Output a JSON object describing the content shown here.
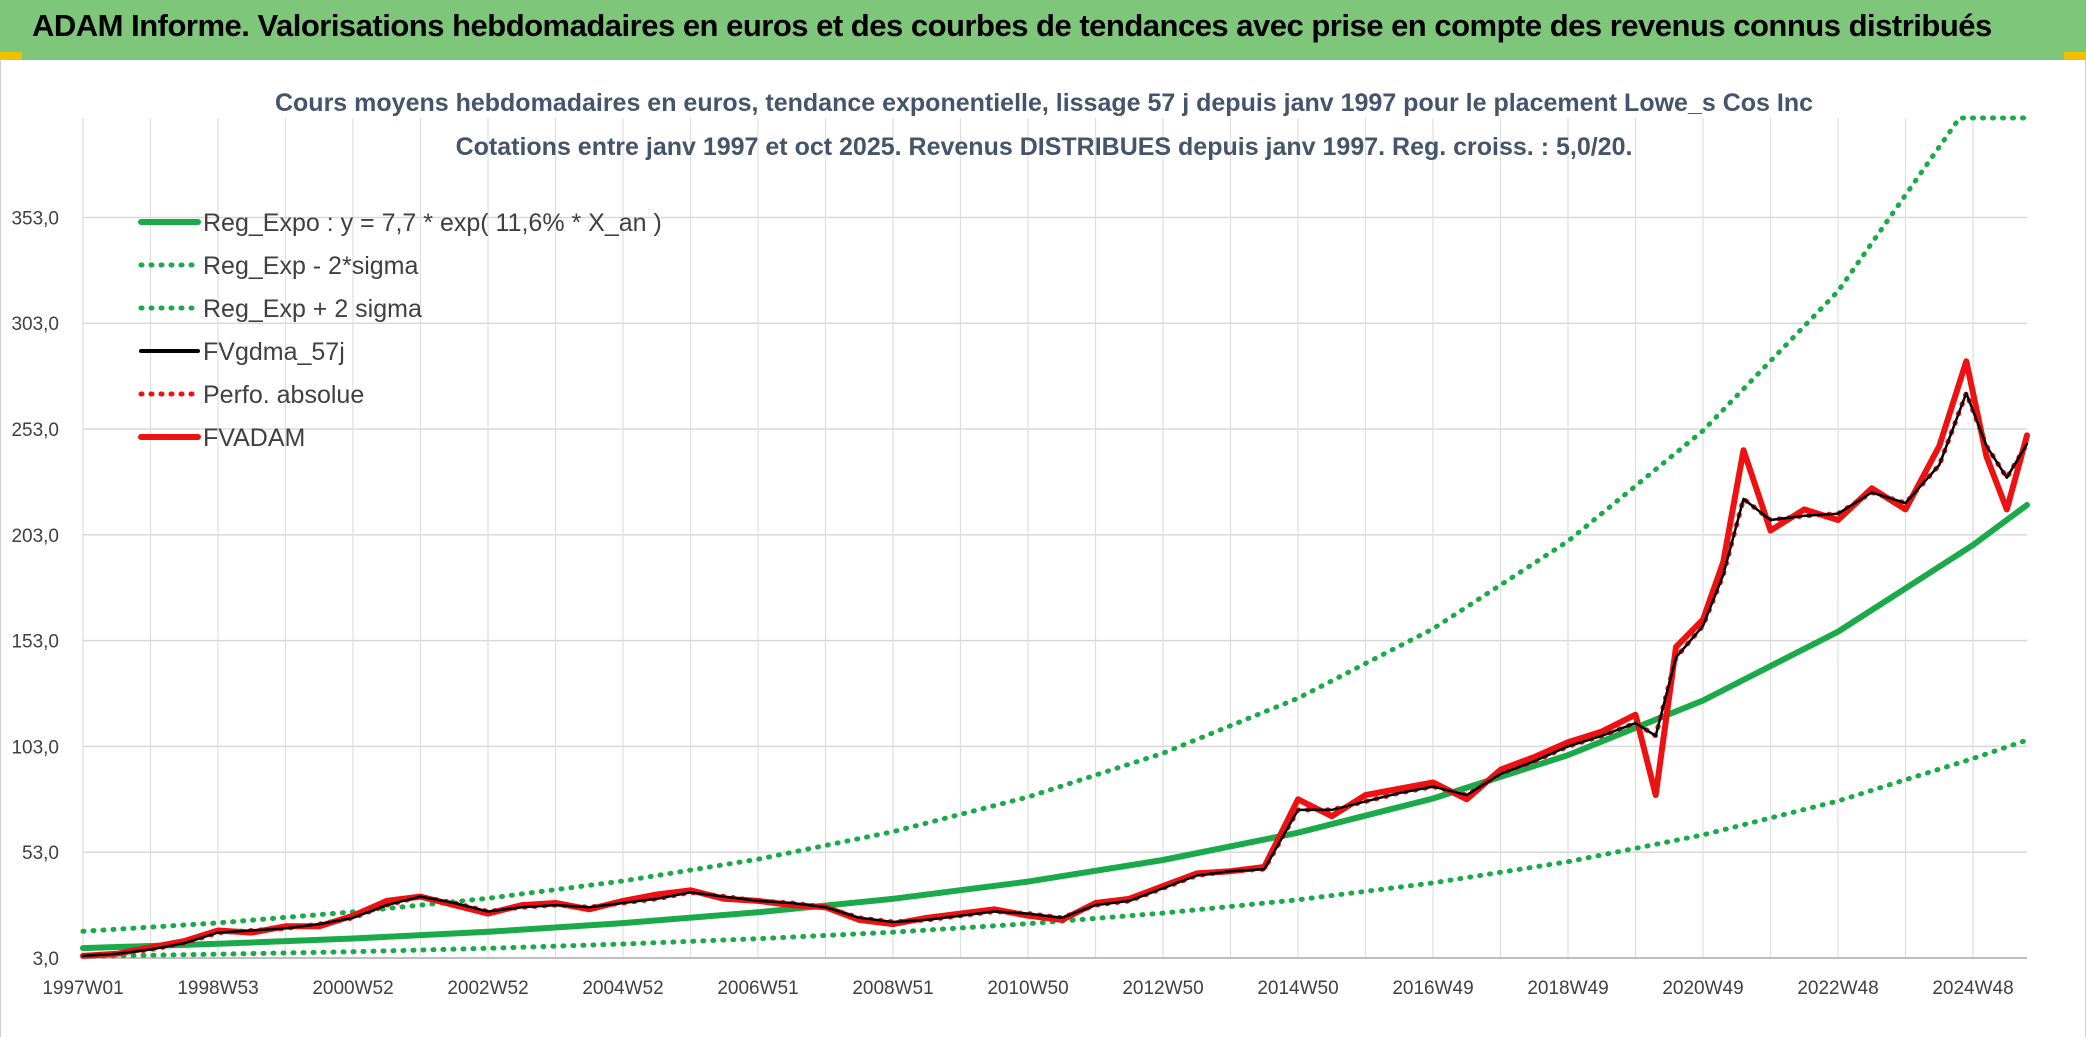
{
  "header": {
    "title": "ADAM Informe. Valorisations hebdomadaires en euros et des courbes de tendances avec prise en compte des revenus connus distribués"
  },
  "chart_data": {
    "type": "line",
    "title_lines": [
      "Cours moyens hebdomadaires en euros, tendance exponentielle, lissage 57 j depuis janv 1997 pour le placement Lowe_s Cos Inc",
      "Cotations entre janv 1997 et oct 2025. Revenus DISTRIBUES depuis janv 1997. Reg. croiss. : 5,0/20."
    ],
    "xlabel": "",
    "ylabel": "",
    "ylim": [
      3,
      400
    ],
    "xlim": [
      1997.0,
      2025.8
    ],
    "y_ticks": [
      "3,0",
      "53,0",
      "103,0",
      "153,0",
      "203,0",
      "253,0",
      "303,0",
      "353,0"
    ],
    "y_tick_values": [
      3,
      53,
      103,
      153,
      203,
      253,
      303,
      353
    ],
    "x_ticks": [
      "1997W01",
      "1998W53",
      "2000W52",
      "2002W52",
      "2004W52",
      "2006W51",
      "2008W51",
      "2010W50",
      "2012W50",
      "2014W50",
      "2016W49",
      "2018W49",
      "2020W49",
      "2022W48",
      "2024W48"
    ],
    "x_tick_years": [
      1997.0,
      1999.0,
      2001.0,
      2003.0,
      2005.0,
      2007.0,
      2009.0,
      2011.0,
      2013.0,
      2015.0,
      2017.0,
      2019.0,
      2021.0,
      2023.0,
      2025.0
    ],
    "grid": true,
    "legend_position": "top-left",
    "colors": {
      "green": "#1aaa4a",
      "black": "#000000",
      "red": "#ee1111"
    },
    "series": [
      {
        "name": "Reg_Expo : y = 7,7 * exp( 11,6% *  X_an )",
        "style": "solid-thick",
        "color": "#1aaa4a",
        "x": [
          1997.0,
          1999.0,
          2001.0,
          2003.0,
          2005.0,
          2007.0,
          2009.0,
          2011.0,
          2013.0,
          2015.0,
          2017.0,
          2019.0,
          2021.0,
          2023.0,
          2025.0,
          2025.8
        ],
        "y": [
          7.7,
          9.7,
          12.2,
          15.4,
          19.5,
          24.6,
          31.0,
          39.1,
          49.3,
          62.2,
          78.4,
          98.9,
          124.7,
          157.2,
          198.2,
          217.1
        ]
      },
      {
        "name": "Reg_Exp - 2*sigma",
        "style": "dotted",
        "color": "#1aaa4a",
        "x": [
          1997.0,
          1999.0,
          2001.0,
          2003.0,
          2005.0,
          2007.0,
          2009.0,
          2011.0,
          2013.0,
          2015.0,
          2017.0,
          2019.0,
          2021.0,
          2023.0,
          2025.0,
          2025.8
        ],
        "y": [
          3.8,
          4.8,
          6.0,
          7.6,
          9.6,
          12.1,
          15.2,
          19.2,
          24.2,
          30.5,
          38.5,
          48.5,
          61.2,
          77.2,
          97.3,
          106.0
        ]
      },
      {
        "name": "Reg_Exp + 2 sigma",
        "style": "dotted",
        "color": "#1aaa4a",
        "x": [
          1997.0,
          1999.0,
          2001.0,
          2003.0,
          2005.0,
          2007.0,
          2009.0,
          2011.0,
          2013.0,
          2015.0,
          2017.0,
          2019.0,
          2021.0,
          2023.0,
          2024.8,
          2025.8
        ],
        "y": [
          15.6,
          19.6,
          24.8,
          31.2,
          39.4,
          49.7,
          62.7,
          79.1,
          99.8,
          125.8,
          158.6,
          200.0,
          252.2,
          318.1,
          400.0,
          400.0
        ]
      },
      {
        "name": "FVgdma_57j",
        "style": "solid",
        "color": "#000000",
        "x": [
          1997.0,
          1997.5,
          1998.0,
          1998.5,
          1999.0,
          1999.5,
          2000.0,
          2000.5,
          2001.0,
          2001.5,
          2002.0,
          2002.5,
          2003.0,
          2003.5,
          2004.0,
          2004.5,
          2005.0,
          2005.5,
          2006.0,
          2006.5,
          2007.0,
          2007.5,
          2008.0,
          2008.5,
          2009.0,
          2009.5,
          2010.0,
          2010.5,
          2011.0,
          2011.5,
          2012.0,
          2012.5,
          2013.0,
          2013.5,
          2014.0,
          2014.5,
          2015.0,
          2015.5,
          2016.0,
          2016.5,
          2017.0,
          2017.5,
          2018.0,
          2018.5,
          2019.0,
          2019.5,
          2020.0,
          2020.3,
          2020.6,
          2021.0,
          2021.3,
          2021.6,
          2022.0,
          2022.5,
          2023.0,
          2023.5,
          2024.0,
          2024.5,
          2024.9,
          2025.2,
          2025.5,
          2025.8
        ],
        "y": [
          4,
          5,
          7,
          10,
          15,
          16,
          17,
          19,
          22,
          28,
          32,
          29,
          25,
          27,
          28,
          27,
          29,
          31,
          34,
          32,
          30,
          29,
          27,
          22,
          20,
          21,
          23,
          25,
          24,
          22,
          28,
          30,
          36,
          42,
          44,
          45,
          73,
          73,
          77,
          81,
          84,
          80,
          90,
          96,
          103,
          108,
          114,
          108,
          145,
          160,
          184,
          220,
          210,
          212,
          213,
          223,
          218,
          236,
          270,
          245,
          230,
          246
        ]
      },
      {
        "name": "Perfo. absolue",
        "style": "dotted",
        "color": "#ee1111",
        "x": [
          1997.0,
          1997.5,
          1998.0,
          1998.5,
          1999.0,
          1999.5,
          2000.0,
          2000.5,
          2001.0,
          2001.5,
          2002.0,
          2002.5,
          2003.0,
          2003.5,
          2004.0,
          2004.5,
          2005.0,
          2005.5,
          2006.0,
          2006.5,
          2007.0,
          2007.5,
          2008.0,
          2008.5,
          2009.0,
          2009.5,
          2010.0,
          2010.5,
          2011.0,
          2011.5,
          2012.0,
          2012.5,
          2013.0,
          2013.5,
          2014.0,
          2014.5,
          2015.0,
          2015.5,
          2016.0,
          2016.5,
          2017.0,
          2017.5,
          2018.0,
          2018.5,
          2019.0,
          2019.5,
          2020.0,
          2020.3,
          2020.6,
          2021.0,
          2021.3,
          2021.6,
          2022.0,
          2022.5,
          2023.0,
          2023.5,
          2024.0,
          2024.5,
          2024.9,
          2025.2,
          2025.5,
          2025.8
        ],
        "y": [
          4,
          5,
          7,
          10,
          15,
          16,
          17,
          19,
          22,
          28,
          32,
          29,
          25,
          27,
          28,
          27,
          29,
          31,
          34,
          32,
          30,
          29,
          27,
          22,
          20,
          21,
          23,
          25,
          24,
          22,
          28,
          30,
          36,
          42,
          44,
          45,
          73,
          73,
          77,
          81,
          84,
          80,
          90,
          96,
          103,
          108,
          114,
          108,
          145,
          160,
          184,
          220,
          210,
          212,
          213,
          223,
          218,
          236,
          270,
          245,
          230,
          246
        ]
      },
      {
        "name": "FVADAM",
        "style": "solid-thick",
        "color": "#ee1111",
        "x": [
          1997.0,
          1997.5,
          1998.0,
          1998.5,
          1999.0,
          1999.5,
          2000.0,
          2000.5,
          2001.0,
          2001.5,
          2002.0,
          2002.5,
          2003.0,
          2003.5,
          2004.0,
          2004.5,
          2005.0,
          2005.5,
          2006.0,
          2006.5,
          2007.0,
          2007.5,
          2008.0,
          2008.5,
          2009.0,
          2009.5,
          2010.0,
          2010.5,
          2011.0,
          2011.5,
          2012.0,
          2012.5,
          2013.0,
          2013.5,
          2014.0,
          2014.5,
          2015.0,
          2015.5,
          2016.0,
          2016.5,
          2017.0,
          2017.5,
          2018.0,
          2018.5,
          2019.0,
          2019.5,
          2020.0,
          2020.3,
          2020.6,
          2021.0,
          2021.3,
          2021.6,
          2022.0,
          2022.5,
          2023.0,
          2023.5,
          2024.0,
          2024.5,
          2024.9,
          2025.2,
          2025.5,
          2025.8
        ],
        "y": [
          4,
          5,
          8,
          11,
          16,
          15,
          18,
          18,
          23,
          30,
          32,
          28,
          24,
          28,
          29,
          26,
          30,
          33,
          35,
          31,
          30,
          28,
          27,
          21,
          19,
          22,
          24,
          26,
          23,
          21,
          29,
          31,
          37,
          43,
          44,
          46,
          78,
          70,
          80,
          83,
          86,
          78,
          92,
          98,
          105,
          110,
          118,
          80,
          150,
          163,
          190,
          243,
          205,
          215,
          210,
          225,
          215,
          245,
          285,
          240,
          215,
          250
        ]
      }
    ]
  }
}
